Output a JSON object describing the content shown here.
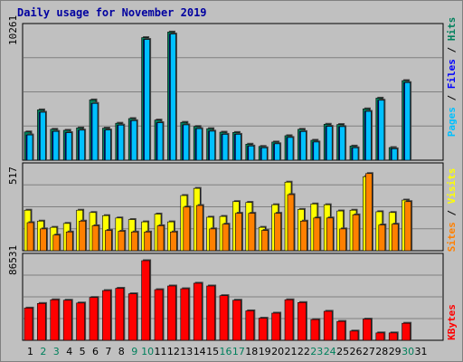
{
  "title": "Daily usage for November 2019",
  "colors": {
    "hits": "#00805c",
    "files": "#0000ff",
    "pages": "#00c0ff",
    "visits": "#ffff00",
    "sites": "#ff8000",
    "kbytes": "#ff0000",
    "weekend": "#00805c",
    "weekday": "#000000"
  },
  "chart_data": [
    {
      "type": "bar",
      "panel": "hits-files-pages",
      "max_label": "10261",
      "series_labels": [
        "Pages",
        "Files",
        "Hits"
      ],
      "categories": [
        "1",
        "2",
        "3",
        "4",
        "5",
        "6",
        "7",
        "8",
        "9",
        "10",
        "11",
        "12",
        "13",
        "14",
        "15",
        "16",
        "17",
        "18",
        "19",
        "20",
        "21",
        "22",
        "23",
        "24",
        "25",
        "26",
        "27",
        "28",
        "29",
        "30",
        "31"
      ],
      "series": [
        {
          "name": "Hits",
          "values": [
            2240,
            3990,
            2450,
            2370,
            2560,
            4780,
            2540,
            2930,
            3300,
            9720,
            3180,
            10160,
            3000,
            2670,
            2500,
            2220,
            2200,
            1270,
            1090,
            1440,
            1940,
            2450,
            1580,
            2850,
            2830,
            1120,
            4070,
            4920,
            1000,
            6310,
            0
          ]
        },
        {
          "name": "Files",
          "values": [
            2000,
            3800,
            2280,
            2180,
            2380,
            4500,
            2390,
            2780,
            3130,
            9570,
            2970,
            10000,
            2800,
            2500,
            2300,
            2050,
            2050,
            1120,
            980,
            1300,
            1800,
            2270,
            1440,
            2680,
            2660,
            980,
            3870,
            4750,
            900,
            6150,
            0
          ]
        },
        {
          "name": "Pages",
          "values": [
            2000,
            3800,
            2280,
            2180,
            2380,
            4500,
            2390,
            2780,
            3130,
            9570,
            2970,
            10000,
            2800,
            2500,
            2300,
            2050,
            2050,
            1120,
            980,
            1300,
            1800,
            2270,
            1440,
            2680,
            2660,
            980,
            3870,
            4750,
            900,
            6150,
            0
          ]
        }
      ]
    },
    {
      "type": "bar",
      "panel": "visits-sites",
      "max_label": "517",
      "series_labels": [
        "Sites",
        "Visits"
      ],
      "categories": [
        "1",
        "2",
        "3",
        "4",
        "5",
        "6",
        "7",
        "8",
        "9",
        "10",
        "11",
        "12",
        "13",
        "14",
        "15",
        "16",
        "17",
        "18",
        "19",
        "20",
        "21",
        "22",
        "23",
        "24",
        "25",
        "26",
        "27",
        "28",
        "29",
        "30",
        "31"
      ],
      "series": [
        {
          "name": "Visits",
          "values": [
            260,
            190,
            150,
            175,
            260,
            245,
            225,
            210,
            200,
            185,
            235,
            185,
            354,
            400,
            215,
            220,
            315,
            310,
            150,
            295,
            440,
            265,
            300,
            295,
            255,
            260,
            475,
            250,
            245,
            325,
            0
          ]
        },
        {
          "name": "Sites",
          "values": [
            180,
            140,
            100,
            120,
            190,
            160,
            130,
            125,
            120,
            120,
            160,
            120,
            280,
            290,
            140,
            170,
            240,
            240,
            130,
            240,
            360,
            190,
            210,
            210,
            140,
            230,
            495,
            165,
            170,
            315,
            0
          ]
        }
      ]
    },
    {
      "type": "bar",
      "panel": "kbytes",
      "max_label": "86531",
      "series_labels": [
        "KBytes"
      ],
      "categories": [
        "1",
        "2",
        "3",
        "4",
        "5",
        "6",
        "7",
        "8",
        "9",
        "10",
        "11",
        "12",
        "13",
        "14",
        "15",
        "16",
        "17",
        "18",
        "19",
        "20",
        "21",
        "22",
        "23",
        "24",
        "25",
        "26",
        "27",
        "28",
        "29",
        "30",
        "31"
      ],
      "series": [
        {
          "name": "KBytes",
          "values": [
            35000,
            40000,
            44000,
            43500,
            40500,
            46500,
            54000,
            56500,
            50500,
            86500,
            55000,
            59000,
            56000,
            62000,
            59000,
            48500,
            43500,
            32000,
            24000,
            29500,
            44000,
            41000,
            22500,
            31500,
            20500,
            10000,
            23000,
            8000,
            8000,
            18500,
            0
          ]
        }
      ]
    }
  ]
}
